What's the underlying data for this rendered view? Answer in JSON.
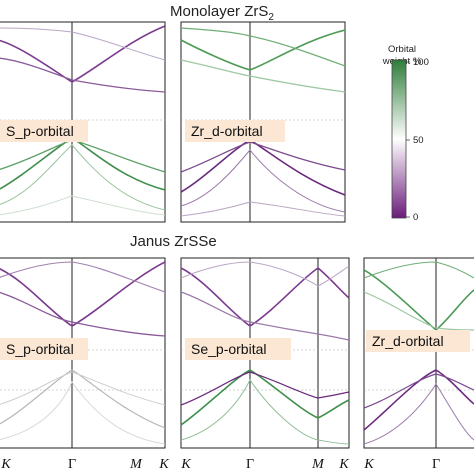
{
  "headings": {
    "top": {
      "prefix": "Monolayer ZrS",
      "sub": "2"
    },
    "bottom": "Janus ZrSSe"
  },
  "panels": [
    {
      "label": "S_p-orbital"
    },
    {
      "label": "Zr_d-orbital"
    },
    {
      "label": "S_p-orbital"
    },
    {
      "label": "Se_p-orbital"
    },
    {
      "label": "Zr_d-orbital"
    }
  ],
  "k_ticks": {
    "k": "K",
    "gamma": "Γ",
    "m": "M"
  },
  "colorbar": {
    "title_line1": "Orbital",
    "title_line2": "weight %",
    "ticks": [
      "100",
      "50",
      "0"
    ],
    "color_high": "#2e7d3a",
    "color_mid": "#ffffff",
    "color_low": "#6a1b7a"
  }
}
